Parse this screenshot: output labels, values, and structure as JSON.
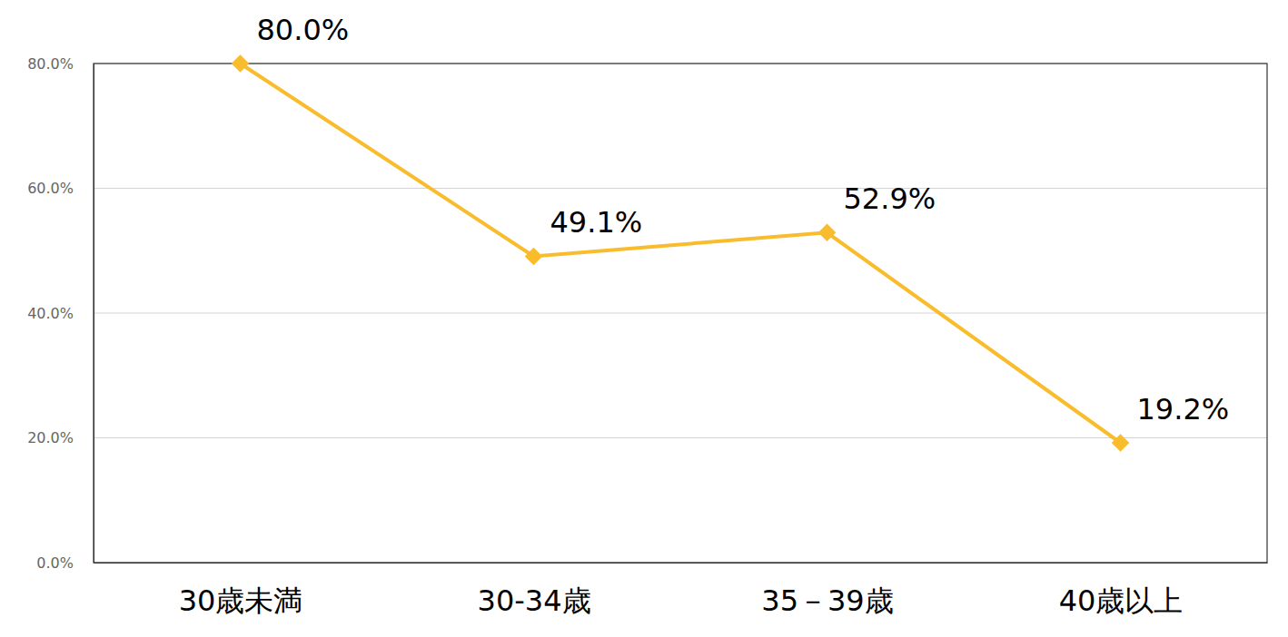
{
  "chart_data": {
    "type": "line",
    "categories": [
      "30歳未満",
      "30-34歳",
      "35－39歳",
      "40歳以上"
    ],
    "values": [
      80.0,
      49.1,
      52.9,
      19.2
    ],
    "value_labels": [
      "80.0%",
      "49.1%",
      "52.9%",
      "19.2%"
    ],
    "color": "#f9bc2c",
    "marker": "diamond",
    "line_style": "solid",
    "ylim": [
      0,
      80
    ],
    "yticks": [
      {
        "value": 0,
        "label": "0.0%"
      },
      {
        "value": 20,
        "label": "20.0%"
      },
      {
        "value": 40,
        "label": "40.0%"
      },
      {
        "value": 60,
        "label": "60.0%"
      },
      {
        "value": 80,
        "label": "80.0%"
      }
    ],
    "grid": true,
    "data_labels": true
  }
}
